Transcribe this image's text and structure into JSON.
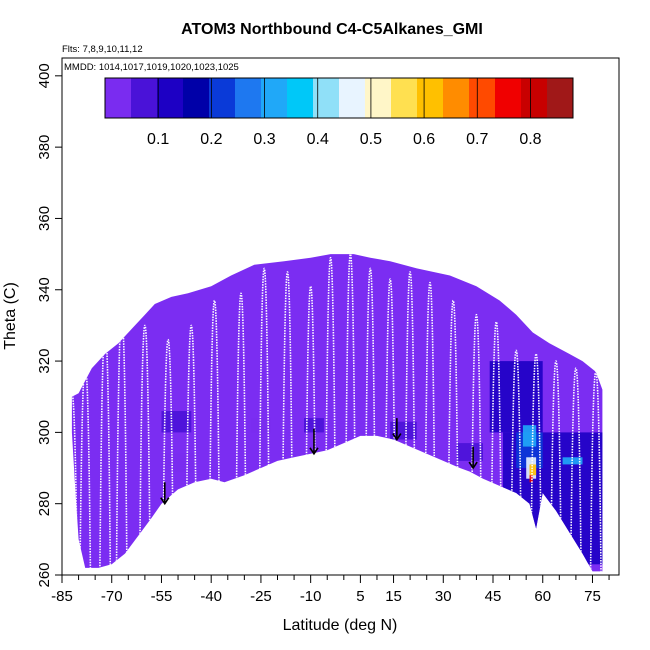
{
  "chart_data": {
    "type": "heatmap",
    "title": "ATOM3 Northbound C4-C5Alkanes_GMI",
    "flights_note": "Flts: 7,8,9,10,11,12",
    "dates_note": "MMDD: 1014,1017,1019,1020,1023,1025",
    "xlabel": "Latitude (deg N)",
    "ylabel": "Theta (C)",
    "xlim": [
      -85,
      83
    ],
    "ylim": [
      260,
      405
    ],
    "x_major_ticks": [
      -85,
      -70,
      -55,
      -40,
      -25,
      -10,
      5,
      15,
      30,
      45,
      60,
      75
    ],
    "x_minor_ticks": [
      -80,
      -75,
      -65,
      -60,
      -50,
      -45,
      -35,
      -30,
      -20,
      -15,
      -5,
      0,
      10,
      20,
      25,
      35,
      40,
      50,
      55,
      65,
      70,
      80
    ],
    "y_ticks": [
      260,
      280,
      300,
      320,
      340,
      360,
      380,
      400
    ],
    "colorbar": {
      "range": [
        0,
        0.88
      ],
      "ticks": [
        0.1,
        0.2,
        0.3,
        0.4,
        0.5,
        0.6,
        0.7,
        0.8
      ],
      "colors": [
        "#7a2cf0",
        "#4a12d8",
        "#1d00c4",
        "#0000a8",
        "#0a3ad8",
        "#1e78f0",
        "#20a8f8",
        "#00c8f8",
        "#90e0f8",
        "#e8f4ff",
        "#fff6c8",
        "#ffe050",
        "#ffc000",
        "#ff8c00",
        "#ff4a00",
        "#f00000",
        "#c80000",
        "#a01818"
      ]
    },
    "background_color": "#7b2df2",
    "envelope": {
      "top": [
        [
          -82,
          310
        ],
        [
          -80,
          311
        ],
        [
          -76,
          318
        ],
        [
          -72,
          322
        ],
        [
          -68,
          325
        ],
        [
          -64,
          329
        ],
        [
          -60,
          333
        ],
        [
          -57,
          336
        ],
        [
          -52,
          338
        ],
        [
          -47,
          339
        ],
        [
          -40,
          341
        ],
        [
          -34,
          344
        ],
        [
          -27,
          347
        ],
        [
          -18,
          348
        ],
        [
          -10,
          349
        ],
        [
          -4,
          350
        ],
        [
          3,
          350
        ],
        [
          8,
          349
        ],
        [
          14,
          348
        ],
        [
          22,
          346
        ],
        [
          32,
          344
        ],
        [
          40,
          341
        ],
        [
          47,
          337
        ],
        [
          52,
          333
        ],
        [
          57,
          328
        ],
        [
          62,
          325
        ],
        [
          68,
          322
        ],
        [
          72,
          320
        ],
        [
          76,
          317
        ],
        [
          78,
          312
        ]
      ],
      "bottom": [
        [
          -82,
          300
        ],
        [
          -81,
          284
        ],
        [
          -80,
          270
        ],
        [
          -78,
          262
        ],
        [
          -74,
          262
        ],
        [
          -70,
          263
        ],
        [
          -66,
          266
        ],
        [
          -62,
          271
        ],
        [
          -58,
          276
        ],
        [
          -55,
          280
        ],
        [
          -50,
          284
        ],
        [
          -45,
          286
        ],
        [
          -40,
          287
        ],
        [
          -36,
          286
        ],
        [
          -30,
          288
        ],
        [
          -25,
          290
        ],
        [
          -20,
          292
        ],
        [
          -15,
          293
        ],
        [
          -10,
          294
        ],
        [
          -5,
          295
        ],
        [
          0,
          297
        ],
        [
          5,
          299
        ],
        [
          10,
          299
        ],
        [
          15,
          298
        ],
        [
          20,
          296
        ],
        [
          25,
          294
        ],
        [
          30,
          292
        ],
        [
          35,
          290
        ],
        [
          38,
          289
        ],
        [
          42,
          287
        ],
        [
          47,
          285
        ],
        [
          52,
          283
        ],
        [
          56,
          280
        ],
        [
          58,
          273
        ],
        [
          60,
          283
        ],
        [
          64,
          278
        ],
        [
          68,
          272
        ],
        [
          72,
          266
        ],
        [
          75,
          261
        ],
        [
          78,
          261
        ]
      ]
    },
    "high_value_patches": [
      {
        "lon": [
          -55,
          -46
        ],
        "theta": [
          300,
          306
        ],
        "value": 0.08
      },
      {
        "lon": [
          -55,
          -45
        ],
        "theta": [
          289,
          294
        ],
        "value": 0.04
      },
      {
        "lon": [
          -28,
          -22
        ],
        "theta": [
          300,
          304
        ],
        "value": 0.04
      },
      {
        "lon": [
          -12,
          -6
        ],
        "theta": [
          300,
          304
        ],
        "value": 0.06
      },
      {
        "lon": [
          14,
          22
        ],
        "theta": [
          298,
          303
        ],
        "value": 0.08
      },
      {
        "lon": [
          34,
          42
        ],
        "theta": [
          292,
          297
        ],
        "value": 0.06
      },
      {
        "lon": [
          44,
          60
        ],
        "theta": [
          300,
          320
        ],
        "value": 0.1
      },
      {
        "lon": [
          48,
          78
        ],
        "theta": [
          263,
          300
        ],
        "value": 0.12
      },
      {
        "lon": [
          52,
          60
        ],
        "theta": [
          290,
          300
        ],
        "value": 0.2
      },
      {
        "lon": [
          54,
          58
        ],
        "theta": [
          296,
          302
        ],
        "value": 0.3
      },
      {
        "lon": [
          66,
          72
        ],
        "theta": [
          291,
          293
        ],
        "value": 0.3
      },
      {
        "lon": [
          55,
          58
        ],
        "theta": [
          287,
          293
        ],
        "value": 0.45
      },
      {
        "lon": [
          56,
          58
        ],
        "theta": [
          288,
          291
        ],
        "value": 0.62
      },
      {
        "lon": [
          56,
          57
        ],
        "theta": [
          286,
          288
        ],
        "value": 0.75
      }
    ],
    "profiles": [
      {
        "lon": -82,
        "top": 311
      },
      {
        "lon": -78,
        "top": 319
      },
      {
        "lon": -72,
        "top": 329
      },
      {
        "lon": -67,
        "top": 333
      },
      {
        "lon": -60,
        "top": 330
      },
      {
        "lon": -53,
        "top": 326
      },
      {
        "lon": -46,
        "top": 330
      },
      {
        "lon": -39,
        "top": 337
      },
      {
        "lon": -31,
        "top": 339
      },
      {
        "lon": -24,
        "top": 346
      },
      {
        "lon": -17,
        "top": 345
      },
      {
        "lon": -10,
        "top": 341
      },
      {
        "lon": -4,
        "top": 349
      },
      {
        "lon": 2,
        "top": 350
      },
      {
        "lon": 8,
        "top": 346
      },
      {
        "lon": 14,
        "top": 343
      },
      {
        "lon": 20,
        "top": 345
      },
      {
        "lon": 26,
        "top": 342
      },
      {
        "lon": 33,
        "top": 337
      },
      {
        "lon": 40,
        "top": 333
      },
      {
        "lon": 46,
        "top": 331
      },
      {
        "lon": 52,
        "top": 323
      },
      {
        "lon": 58,
        "top": 322
      },
      {
        "lon": 64,
        "top": 320
      },
      {
        "lon": 70,
        "top": 318
      },
      {
        "lon": 76,
        "top": 317
      }
    ],
    "arrows": [
      {
        "lon": -54,
        "theta_start": 286,
        "theta_end": 280
      },
      {
        "lon": -9,
        "theta_start": 301,
        "theta_end": 294
      },
      {
        "lon": 16,
        "theta_start": 304,
        "theta_end": 298
      },
      {
        "lon": 39,
        "theta_start": 296,
        "theta_end": 290
      }
    ]
  }
}
